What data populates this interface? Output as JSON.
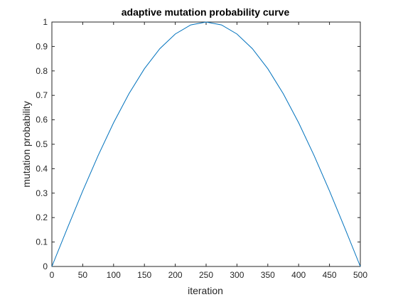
{
  "chart_data": {
    "type": "line",
    "title": "adaptive mutation probability curve",
    "xlabel": "iteration",
    "ylabel": "mutation probability",
    "xlim": [
      0,
      500
    ],
    "ylim": [
      0,
      1
    ],
    "xticks": [
      0,
      50,
      100,
      150,
      200,
      250,
      300,
      350,
      400,
      450,
      500
    ],
    "yticks": [
      0,
      0.1,
      0.2,
      0.3,
      0.4,
      0.5,
      0.6,
      0.7,
      0.8,
      0.9,
      1
    ],
    "grid": false,
    "legend": "none",
    "series": [
      {
        "color": "#0072BD",
        "x": [
          0,
          25,
          50,
          75,
          100,
          125,
          150,
          175,
          200,
          225,
          250,
          275,
          300,
          325,
          350,
          375,
          400,
          425,
          450,
          475,
          500
        ],
        "y": [
          0,
          0.156,
          0.309,
          0.454,
          0.588,
          0.707,
          0.809,
          0.891,
          0.951,
          0.988,
          1.0,
          0.988,
          0.951,
          0.891,
          0.809,
          0.707,
          0.588,
          0.454,
          0.309,
          0.156,
          0
        ]
      }
    ]
  }
}
